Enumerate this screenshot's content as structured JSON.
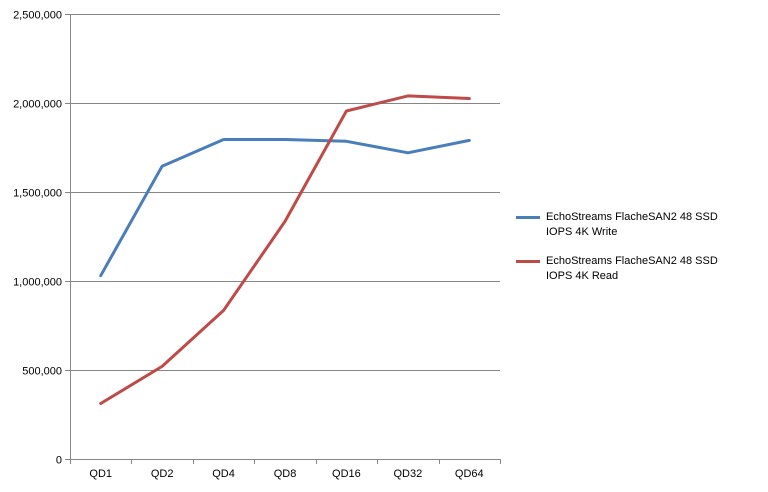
{
  "chart_data": {
    "type": "line",
    "title": "",
    "xlabel": "",
    "ylabel": "",
    "categories": [
      "QD1",
      "QD2",
      "QD4",
      "QD8",
      "QD16",
      "QD32",
      "QD64"
    ],
    "ylim": [
      0,
      2500000
    ],
    "yticks": [
      0,
      500000,
      1000000,
      1500000,
      2000000,
      2500000
    ],
    "ytick_labels": [
      "0",
      "500,000",
      "1,000,000",
      "1,500,000",
      "2,000,000",
      "2,500,000"
    ],
    "grid": true,
    "legend_position": "right",
    "series": [
      {
        "name": "EchoStreams FlacheSAN2 48 SSD IOPS 4K Write",
        "color": "#4a7ebb",
        "values": [
          1030000,
          1645000,
          1795000,
          1795000,
          1785000,
          1720000,
          1790000
        ]
      },
      {
        "name": "EchoStreams FlacheSAN2 48 SSD IOPS 4K Read",
        "color": "#be4b48",
        "values": [
          312000,
          520000,
          835000,
          1335000,
          1955000,
          2040000,
          2025000
        ]
      }
    ]
  }
}
